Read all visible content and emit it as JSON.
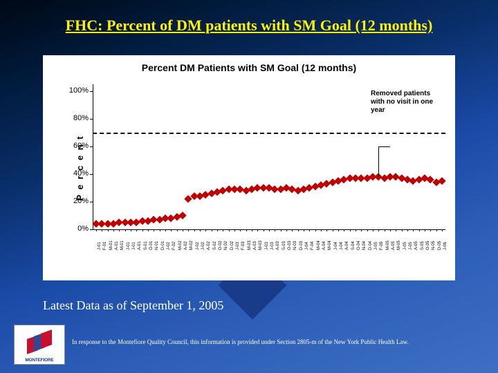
{
  "slide": {
    "title": "FHC: Percent of DM patients with SM Goal (12 months)",
    "subcaption": "Latest Data as of September 1, 2005",
    "disclaimer": "In response to the Montefiore Quality Council, this information is provided under Section 2805-m of the New York Public Health Law.",
    "background_gradient": [
      "#000814",
      "#001a3a",
      "#0a2f6b",
      "#1a4ba8",
      "#2e5fb8",
      "#3d6fc5"
    ],
    "title_color": "#fff200"
  },
  "logo": {
    "text": "MONTEFIORE",
    "colors": {
      "red": "#c8102e",
      "blue": "#2a4a9a"
    }
  },
  "chart": {
    "type": "scatter",
    "title": "Percent DM Patients with SM Goal (12 months)",
    "title_fontsize": 14,
    "ylabel": "P e r c e n t",
    "label_fontsize": 13,
    "background_color": "#ffffff",
    "marker_color": "#c00000",
    "marker_shape": "diamond",
    "marker_size": 8,
    "ylim": [
      0,
      105
    ],
    "yticks": [
      0,
      20,
      40,
      60,
      80,
      100
    ],
    "ytick_labels": [
      "0%",
      "20%",
      "40%",
      "60%",
      "80%",
      "100%"
    ],
    "reference_line": {
      "y": 70,
      "style": "dashed",
      "color": "#000000",
      "width": 2
    },
    "annotation": {
      "text_lines": [
        "Removed patients",
        "with no visit in one",
        "year"
      ],
      "x_index": 49,
      "y_from": 60,
      "y_to": 38,
      "line_color": "#000000"
    },
    "annotation_label_1": "Removed patients",
    "annotation_label_2": "with no visit in one",
    "annotation_label_3": "year",
    "x_labels": [
      "J-01",
      "F-01",
      "M-01",
      "A-01",
      "M-01",
      "J-01",
      "J-01",
      "A-01",
      "S-01",
      "O-01",
      "N-01",
      "D-01",
      "J-02",
      "F-02",
      "M-02",
      "A-02",
      "M-02",
      "J-02",
      "J-02",
      "A-02",
      "S-02",
      "O-02",
      "N-02",
      "D-02",
      "J-03",
      "F-03",
      "M-03",
      "A-03",
      "M-03",
      "J-03",
      "J-03",
      "A-03",
      "S-03",
      "O-03",
      "N-03",
      "D-03",
      "J-04",
      "F-04",
      "M-04",
      "A-04",
      "M-04",
      "J-04",
      "J-04",
      "A-04",
      "S-04",
      "O-04",
      "N-04",
      "D-04",
      "J-05",
      "F-05",
      "M-05",
      "A-05",
      "M-05",
      "J-05",
      "J-05",
      "A-05",
      "S-05",
      "O-05",
      "N-05",
      "D-05",
      "J-06"
    ],
    "values": [
      4,
      4,
      4,
      4,
      5,
      5,
      5,
      5,
      6,
      6,
      7,
      7,
      8,
      8,
      9,
      10,
      22,
      24,
      24,
      25,
      26,
      27,
      28,
      29,
      29,
      29,
      28,
      29,
      30,
      30,
      30,
      29,
      29,
      30,
      29,
      28,
      29,
      30,
      31,
      32,
      33,
      34,
      35,
      36,
      37,
      37,
      37,
      37,
      38,
      38,
      37,
      38,
      38,
      37,
      36,
      35,
      36,
      37,
      36,
      34,
      35
    ]
  }
}
